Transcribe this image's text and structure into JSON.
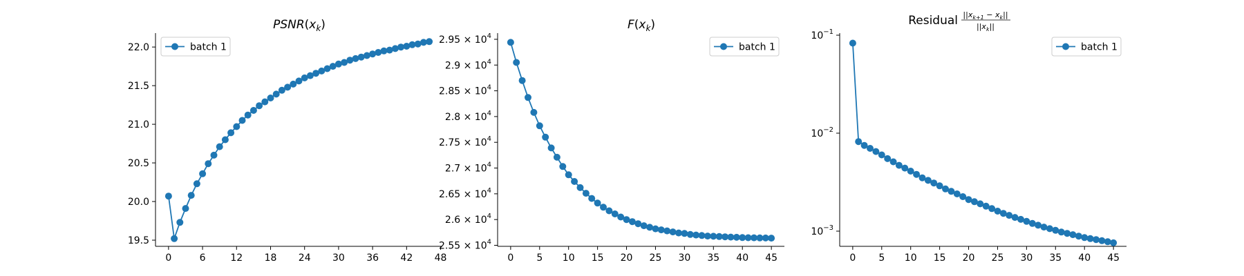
{
  "chart_data": [
    {
      "type": "line",
      "title": "PSNR(x_k)",
      "xlabel": "",
      "ylabel": "",
      "xlim": [
        -2.3,
        48.3
      ],
      "ylim": [
        19.42,
        22.18
      ],
      "yscale": "linear",
      "xticks": [
        0,
        6,
        12,
        18,
        24,
        30,
        36,
        42,
        48
      ],
      "yticks": [
        19.5,
        20.0,
        20.5,
        21.0,
        21.5,
        22.0
      ],
      "ytick_labels": [
        "19.5",
        "20.0",
        "20.5",
        "21.0",
        "21.5",
        "22.0"
      ],
      "legend_position": "top-left",
      "color": "#1f77b4",
      "series": [
        {
          "name": "batch 1",
          "x": [
            0,
            1,
            2,
            3,
            4,
            5,
            6,
            7,
            8,
            9,
            10,
            11,
            12,
            13,
            14,
            15,
            16,
            17,
            18,
            19,
            20,
            21,
            22,
            23,
            24,
            25,
            26,
            27,
            28,
            29,
            30,
            31,
            32,
            33,
            34,
            35,
            36,
            37,
            38,
            39,
            40,
            41,
            42,
            43,
            44,
            45,
            46
          ],
          "y": [
            20.07,
            19.52,
            19.73,
            19.91,
            20.08,
            20.23,
            20.36,
            20.49,
            20.6,
            20.71,
            20.8,
            20.89,
            20.97,
            21.05,
            21.12,
            21.18,
            21.24,
            21.29,
            21.34,
            21.39,
            21.44,
            21.48,
            21.52,
            21.56,
            21.6,
            21.63,
            21.66,
            21.69,
            21.72,
            21.75,
            21.78,
            21.8,
            21.83,
            21.85,
            21.87,
            21.89,
            21.91,
            21.93,
            21.95,
            21.96,
            21.98,
            22.0,
            22.01,
            22.03,
            22.04,
            22.06,
            22.07
          ]
        }
      ]
    },
    {
      "type": "line",
      "title": "F(x_k)",
      "xlabel": "",
      "ylabel": "",
      "xlim": [
        -2.25,
        47.25
      ],
      "ylim": [
        25480,
        29620
      ],
      "yscale": "linear",
      "xticks": [
        0,
        5,
        10,
        15,
        20,
        25,
        30,
        35,
        40,
        45
      ],
      "yticks": [
        25500,
        26000,
        26500,
        27000,
        27500,
        28000,
        28500,
        29000,
        29500
      ],
      "ytick_labels": [
        "2.55",
        "2.6",
        "2.65",
        "2.7",
        "2.75",
        "2.8",
        "2.85",
        "2.9",
        "2.95"
      ],
      "ytick_suffix": "× 10",
      "ytick_exponent": "4",
      "legend_position": "top-right",
      "color": "#1f77b4",
      "series": [
        {
          "name": "batch 1",
          "x": [
            0,
            1,
            2,
            3,
            4,
            5,
            6,
            7,
            8,
            9,
            10,
            11,
            12,
            13,
            14,
            15,
            16,
            17,
            18,
            19,
            20,
            21,
            22,
            23,
            24,
            25,
            26,
            27,
            28,
            29,
            30,
            31,
            32,
            33,
            34,
            35,
            36,
            37,
            38,
            39,
            40,
            41,
            42,
            43,
            44,
            45
          ],
          "y": [
            29440,
            29050,
            28700,
            28370,
            28080,
            27820,
            27600,
            27390,
            27210,
            27030,
            26870,
            26740,
            26620,
            26510,
            26410,
            26320,
            26240,
            26170,
            26110,
            26050,
            26000,
            25960,
            25920,
            25880,
            25850,
            25820,
            25800,
            25780,
            25760,
            25740,
            25730,
            25710,
            25700,
            25690,
            25680,
            25675,
            25670,
            25665,
            25660,
            25655,
            25650,
            25648,
            25646,
            25644,
            25642,
            25640
          ]
        }
      ]
    },
    {
      "type": "line",
      "title": "Residual",
      "title_formula": {
        "numerator": "||x_{k+1} − x_k||",
        "denominator": "||x_k||"
      },
      "xlabel": "",
      "ylabel": "",
      "xlim": [
        -2.25,
        47.25
      ],
      "ylim": [
        0.0007,
        0.105
      ],
      "yscale": "log",
      "xticks": [
        0,
        5,
        10,
        15,
        20,
        25,
        30,
        35,
        40,
        45
      ],
      "yticks": [
        0.001,
        0.01,
        0.1
      ],
      "ytick_exponents": [
        "−3",
        "−2",
        "−1"
      ],
      "legend_position": "top-right",
      "color": "#1f77b4",
      "series": [
        {
          "name": "batch 1",
          "x": [
            0,
            1,
            2,
            3,
            4,
            5,
            6,
            7,
            8,
            9,
            10,
            11,
            12,
            13,
            14,
            15,
            16,
            17,
            18,
            19,
            20,
            21,
            22,
            23,
            24,
            25,
            26,
            27,
            28,
            29,
            30,
            31,
            32,
            33,
            34,
            35,
            36,
            37,
            38,
            39,
            40,
            41,
            42,
            43,
            44,
            45
          ],
          "y": [
            0.083,
            0.0082,
            0.0075,
            0.007,
            0.0065,
            0.006,
            0.0055,
            0.0051,
            0.0047,
            0.0044,
            0.0041,
            0.0038,
            0.0035,
            0.0033,
            0.0031,
            0.0029,
            0.0027,
            0.00255,
            0.0024,
            0.00225,
            0.0021,
            0.002,
            0.0019,
            0.0018,
            0.0017,
            0.0016,
            0.00152,
            0.00145,
            0.00138,
            0.00132,
            0.00126,
            0.0012,
            0.00115,
            0.0011,
            0.00106,
            0.00102,
            0.00098,
            0.00095,
            0.00092,
            0.00089,
            0.00086,
            0.00084,
            0.00082,
            0.0008,
            0.00078,
            0.00076
          ]
        }
      ]
    }
  ]
}
